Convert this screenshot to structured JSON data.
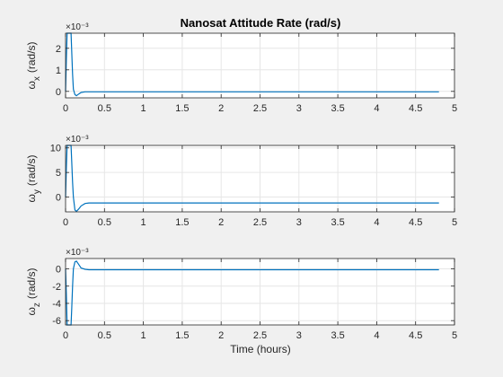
{
  "chart_data": {
    "title": "Nanosat Attitude Rate (rad/s)",
    "xlabel": "Time (hours)",
    "line_color": "#0072BD",
    "grid": true,
    "x_ticks": [
      "0",
      "0.5",
      "1",
      "1.5",
      "2",
      "2.5",
      "3",
      "3.5",
      "4",
      "4.5",
      "5"
    ],
    "panels": [
      {
        "type": "line",
        "ylabel": "ω_x (rad/s)",
        "ylabel_symbol": "ω",
        "ylabel_sub": "x",
        "ylabel_unit": "(rad/s)",
        "exponent": "×10⁻³",
        "xlim": [
          0,
          5
        ],
        "ylim": [
          -0.3,
          2.7
        ],
        "y_ticks": [
          "0",
          "1",
          "2"
        ],
        "y_tick_values": [
          0,
          1,
          2
        ],
        "x": [
          0,
          0.01,
          0.02,
          0.03,
          0.05,
          0.07,
          0.08,
          0.09,
          0.1,
          0.12,
          0.14,
          0.17,
          0.2,
          0.25,
          0.3,
          0.5,
          1,
          2,
          3,
          4,
          4.8
        ],
        "y": [
          0,
          1.5,
          2.7,
          2.7,
          2.7,
          2.7,
          1.8,
          0.8,
          0.1,
          -0.15,
          -0.2,
          -0.12,
          -0.05,
          -0.02,
          -0.02,
          -0.02,
          -0.02,
          -0.02,
          -0.02,
          -0.02,
          -0.02
        ]
      },
      {
        "type": "line",
        "ylabel": "ω_y (rad/s)",
        "ylabel_symbol": "ω",
        "ylabel_sub": "y",
        "ylabel_unit": "(rad/s)",
        "exponent": "×10⁻³",
        "xlim": [
          0,
          5
        ],
        "ylim": [
          -3,
          10.5
        ],
        "y_ticks": [
          "0",
          "5",
          "10"
        ],
        "y_tick_values": [
          0,
          5,
          10
        ],
        "x": [
          0,
          0.01,
          0.02,
          0.03,
          0.05,
          0.07,
          0.08,
          0.09,
          0.1,
          0.12,
          0.14,
          0.17,
          0.2,
          0.25,
          0.3,
          0.5,
          1,
          2,
          3,
          4,
          4.8
        ],
        "y": [
          0,
          6,
          10.5,
          10.5,
          10.5,
          10.5,
          7,
          3,
          0,
          -2.6,
          -2.9,
          -2.4,
          -1.8,
          -1.3,
          -1.2,
          -1.2,
          -1.2,
          -1.2,
          -1.2,
          -1.2,
          -1.2
        ]
      },
      {
        "type": "line",
        "ylabel": "ω_z (rad/s)",
        "ylabel_symbol": "ω",
        "ylabel_sub": "z",
        "ylabel_unit": "(rad/s)",
        "exponent": "×10⁻³",
        "xlim": [
          0,
          5
        ],
        "ylim": [
          -6.5,
          1.2
        ],
        "y_ticks": [
          "0",
          "-2",
          "-4",
          "-6"
        ],
        "y_tick_values": [
          0,
          -2,
          -4,
          -6
        ],
        "x": [
          0,
          0.01,
          0.02,
          0.03,
          0.05,
          0.07,
          0.08,
          0.09,
          0.1,
          0.12,
          0.14,
          0.17,
          0.2,
          0.25,
          0.3,
          0.5,
          1,
          2,
          3,
          4,
          4.8
        ],
        "y": [
          0,
          -3,
          -6.5,
          -6.5,
          -6.5,
          -6.5,
          -4.5,
          -2,
          0,
          0.8,
          0.9,
          0.5,
          0.1,
          -0.05,
          -0.1,
          -0.1,
          -0.1,
          -0.1,
          -0.1,
          -0.1,
          -0.1
        ]
      }
    ]
  }
}
